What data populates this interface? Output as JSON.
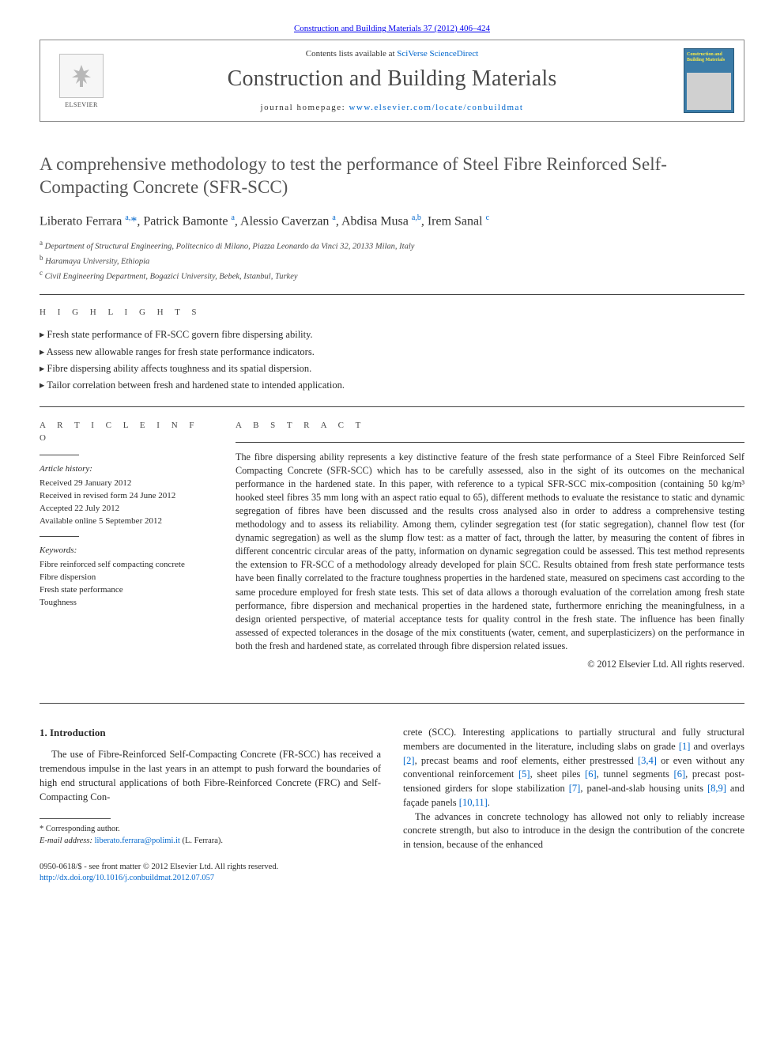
{
  "header": {
    "citation": "Construction and Building Materials 37 (2012) 406–424",
    "contents_prefix": "Contents lists available at ",
    "contents_link": "SciVerse ScienceDirect",
    "journal_name": "Construction and Building Materials",
    "homepage_prefix": "journal homepage: ",
    "homepage_link": "www.elsevier.com/locate/conbuildmat",
    "publisher": "ELSEVIER",
    "cover_title": "Construction and Building Materials"
  },
  "title": "A comprehensive methodology to test the performance of Steel Fibre Reinforced Self-Compacting Concrete (SFR-SCC)",
  "authors_html": "Liberato Ferrara <sup>a,</sup><span class='corr'>*</span>, Patrick Bamonte <sup>a</sup>, Alessio Caverzan <sup>a</sup>, Abdisa Musa <sup>a,b</sup>, Irem Sanal <sup>c</sup>",
  "affiliations": [
    {
      "key": "a",
      "text": "Department of Structural Engineering, Politecnico di Milano, Piazza Leonardo da Vinci 32, 20133 Milan, Italy"
    },
    {
      "key": "b",
      "text": "Haramaya University, Ethiopia"
    },
    {
      "key": "c",
      "text": "Civil Engineering Department, Bogazici University, Bebek, Istanbul, Turkey"
    }
  ],
  "labels": {
    "highlights": "H I G H L I G H T S",
    "article_info": "A R T I C L E   I N F O",
    "abstract": "A B S T R A C T"
  },
  "highlights": [
    "Fresh state performance of FR-SCC govern fibre dispersing ability.",
    "Assess new allowable ranges for fresh state performance indicators.",
    "Fibre dispersing ability affects toughness and its spatial dispersion.",
    "Tailor correlation between fresh and hardened state to intended application."
  ],
  "article_info": {
    "history_heading": "Article history:",
    "history": [
      "Received 29 January 2012",
      "Received in revised form 24 June 2012",
      "Accepted 22 July 2012",
      "Available online 5 September 2012"
    ],
    "keywords_heading": "Keywords:",
    "keywords": [
      "Fibre reinforced self compacting concrete",
      "Fibre dispersion",
      "Fresh state performance",
      "Toughness"
    ]
  },
  "abstract": "The fibre dispersing ability represents a key distinctive feature of the fresh state performance of a Steel Fibre Reinforced Self Compacting Concrete (SFR-SCC) which has to be carefully assessed, also in the sight of its outcomes on the mechanical performance in the hardened state. In this paper, with reference to a typical SFR-SCC mix-composition (containing 50 kg/m³ hooked steel fibres 35 mm long with an aspect ratio equal to 65), different methods to evaluate the resistance to static and dynamic segregation of fibres have been discussed and the results cross analysed also in order to address a comprehensive testing methodology and to assess its reliability. Among them, cylinder segregation test (for static segregation), channel flow test (for dynamic segregation) as well as the slump flow test: as a matter of fact, through the latter, by measuring the content of fibres in different concentric circular areas of the patty, information on dynamic segregation could be assessed. This test method represents the extension to FR-SCC of a methodology already developed for plain SCC. Results obtained from fresh state performance tests have been finally correlated to the fracture toughness properties in the hardened state, measured on specimens cast according to the same procedure employed for fresh state tests. This set of data allows a thorough evaluation of the correlation among fresh state performance, fibre dispersion and mechanical properties in the hardened state, furthermore enriching the meaningfulness, in a design oriented perspective, of material acceptance tests for quality control in the fresh state. The influence has been finally assessed of expected tolerances in the dosage of the mix constituents (water, cement, and superplasticizers) on the performance in both the fresh and hardened state, as correlated through fibre dispersion related issues.",
  "abstract_copyright": "© 2012 Elsevier Ltd. All rights reserved.",
  "intro": {
    "heading": "1. Introduction",
    "col1": "The use of Fibre-Reinforced Self-Compacting Concrete (FR-SCC) has received a tremendous impulse in the last years in an attempt to push forward the boundaries of high end structural applications of both Fibre-Reinforced Concrete (FRC) and Self-Compacting Con-",
    "col2_p1_html": "crete (SCC). Interesting applications to partially structural and fully structural members are documented in the literature, including slabs on grade <a class='ref' href='#'>[1]</a> and overlays <a class='ref' href='#'>[2]</a>, precast beams and roof elements, either prestressed <a class='ref' href='#'>[3,4]</a> or even without any conventional reinforcement <a class='ref' href='#'>[5]</a>, sheet piles <a class='ref' href='#'>[6]</a>, tunnel segments <a class='ref' href='#'>[6]</a>, precast post-tensioned girders for slope stabilization <a class='ref' href='#'>[7]</a>, panel-and-slab housing units <a class='ref' href='#'>[8,9]</a> and façade panels <a class='ref' href='#'>[10,11]</a>.",
    "col2_p2": "The advances in concrete technology has allowed not only to reliably increase concrete strength, but also to introduce in the design the contribution of the concrete in tension, because of the enhanced"
  },
  "footnotes": {
    "corr_label": "* Corresponding author.",
    "email_label": "E-mail address: ",
    "email": "liberato.ferrara@polimi.it",
    "email_suffix": " (L. Ferrara)."
  },
  "bottom": {
    "issn_line": "0950-0618/$ - see front matter © 2012 Elsevier Ltd. All rights reserved.",
    "doi": "http://dx.doi.org/10.1016/j.conbuildmat.2012.07.057"
  },
  "colors": {
    "link": "#0066cc",
    "title_grey": "#555555",
    "rule": "#444444",
    "cover_bg": "#3b7ca8",
    "cover_accent": "#f7e94a"
  },
  "typography": {
    "base_pt": 13,
    "title_pt": 23,
    "journal_name_pt": 28,
    "authors_pt": 16,
    "small_pt": 11,
    "abstract_pt": 12
  }
}
